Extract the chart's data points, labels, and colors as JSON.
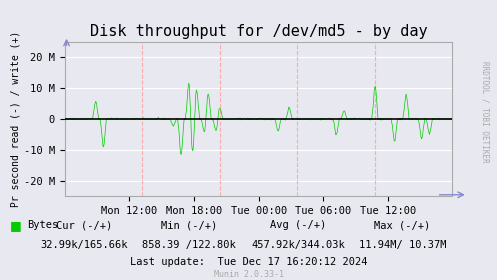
{
  "title": "Disk throughput for /dev/md5 - by day",
  "ylabel": "Pr second read (-) / write (+)",
  "xlabel_ticks": [
    "Mon 12:00",
    "Mon 18:00",
    "Tue 00:00",
    "Tue 06:00",
    "Tue 12:00"
  ],
  "ylim": [
    -25000000,
    25000000
  ],
  "yticks": [
    -20000000,
    -10000000,
    0,
    10000000,
    20000000
  ],
  "ytick_labels": [
    "-20 M",
    "-10 M",
    "0",
    "10 M",
    "20 M"
  ],
  "bg_color": "#e8e8f0",
  "plot_bg_color": "#e8e8f0",
  "grid_color_h": "#ffffff",
  "grid_color_v": "#ffaaaa",
  "line_color": "#00cc00",
  "zero_line_color": "#000000",
  "legend_label": "Bytes",
  "legend_color": "#00cc00",
  "cur_label": "Cur (-/+)",
  "cur_val": "32.99k/165.66k",
  "min_label": "Min (-/+)",
  "min_val": "858.39 /122.80k",
  "avg_label": "Avg (-/+)",
  "avg_val": "457.92k/344.03k",
  "max_label": "Max (-/+)",
  "max_val": "11.94M/ 10.37M",
  "last_update": "Last update:  Tue Dec 17 16:20:12 2024",
  "munin_version": "Munin 2.0.33-1",
  "right_label": "RRDTOOL / TOBI OETIKER",
  "title_fontsize": 11,
  "tick_fontsize": 7.5,
  "legend_fontsize": 7.5,
  "num_points": 800
}
